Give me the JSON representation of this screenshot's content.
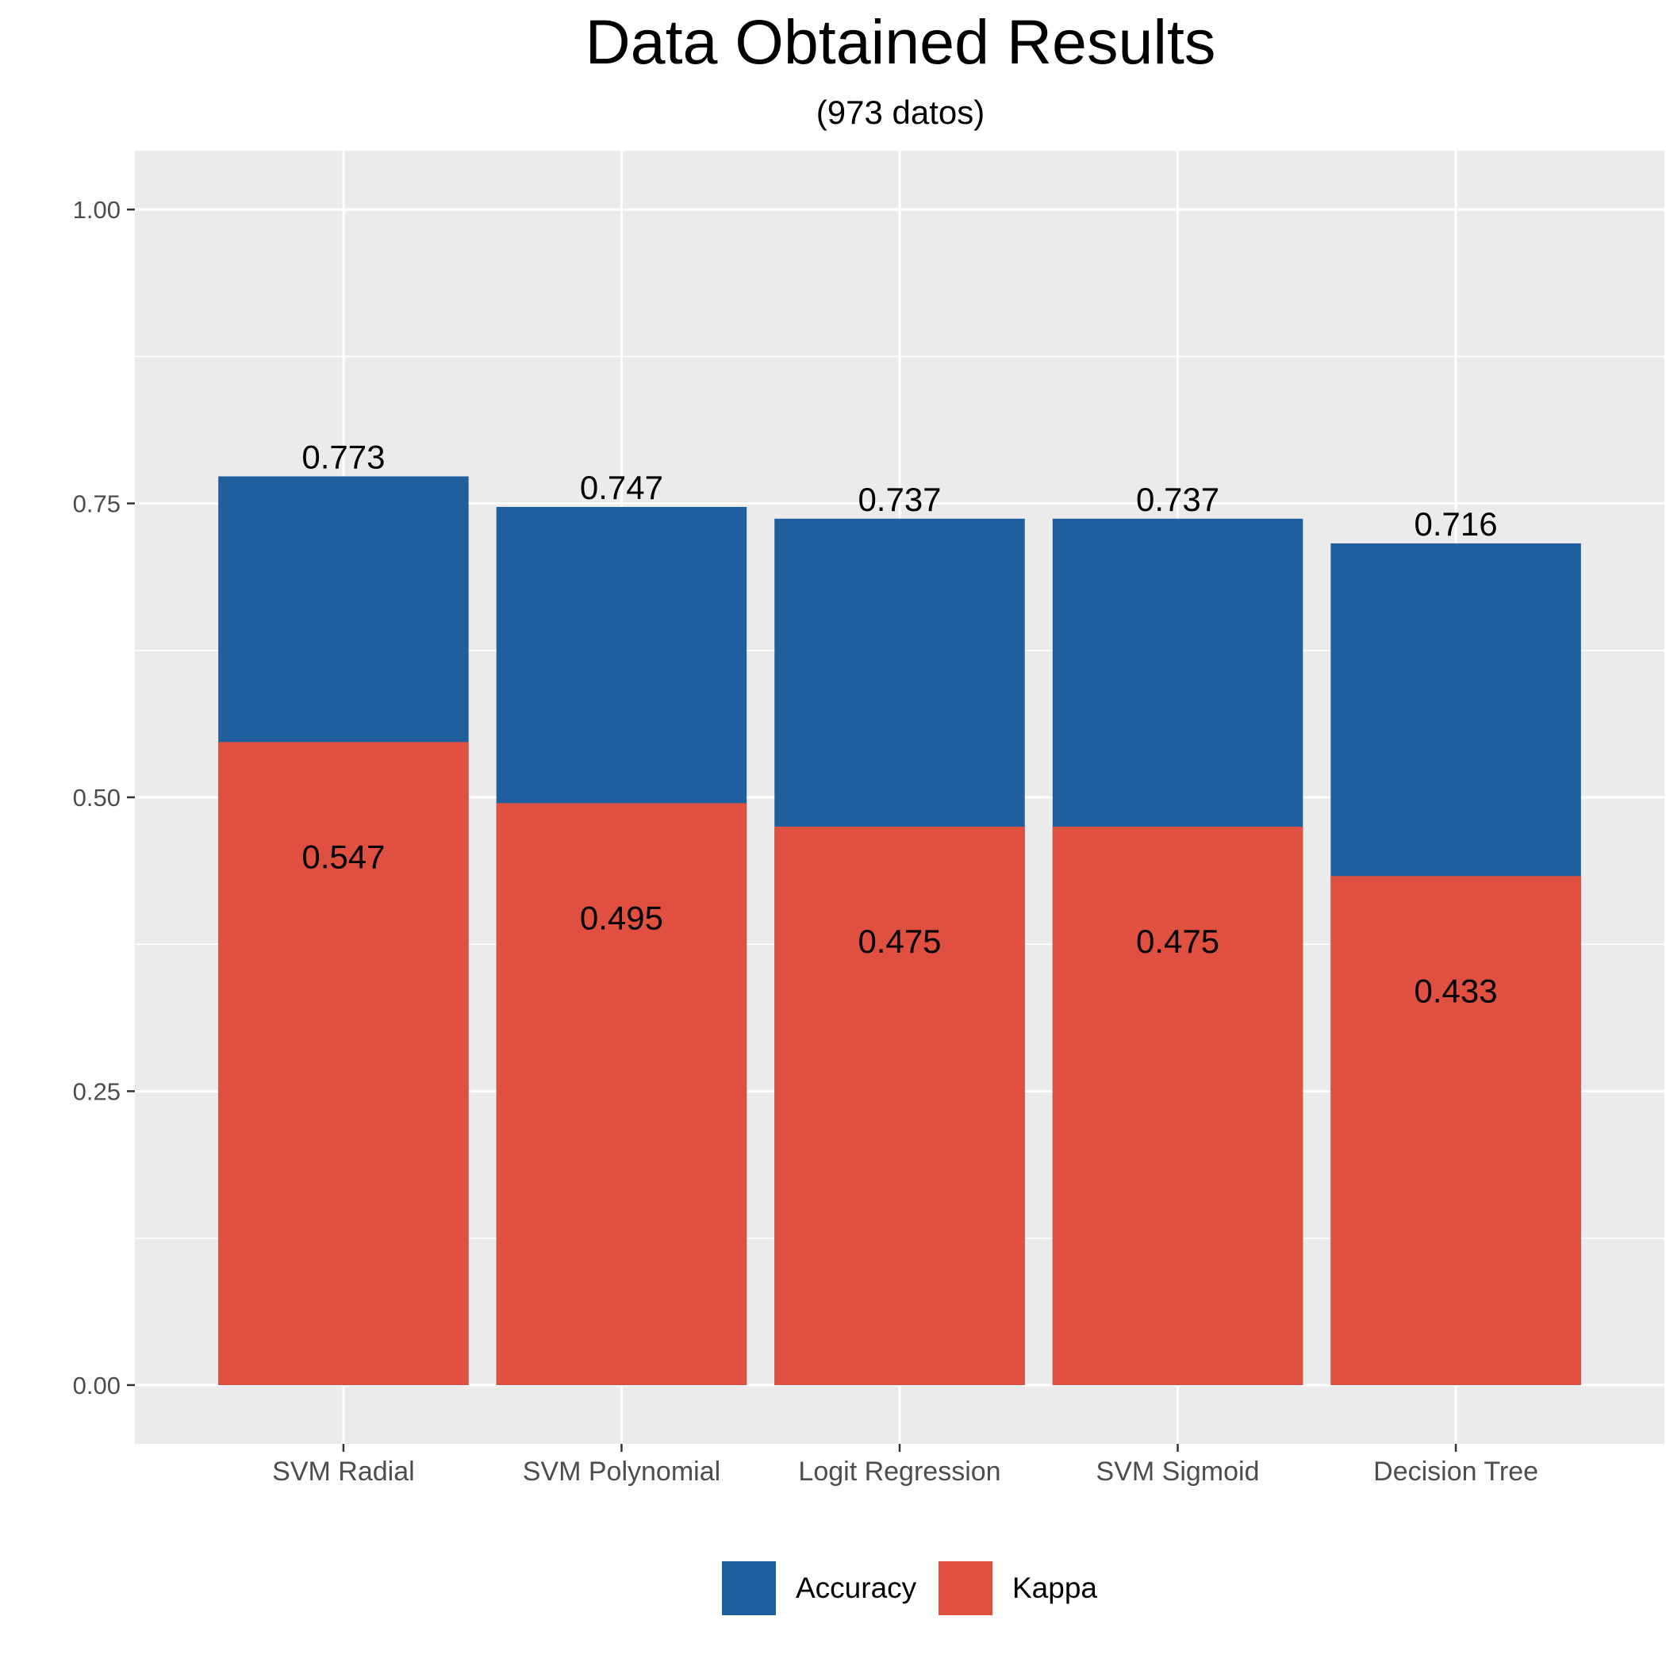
{
  "chart_data": {
    "type": "bar",
    "title": "Data Obtained Results",
    "subtitle": "(973 datos)",
    "xlabel": "",
    "ylabel": "",
    "categories": [
      "SVM Radial",
      "SVM Polynomial",
      "Logit Regression",
      "SVM Sigmoid",
      "Decision Tree"
    ],
    "series": [
      {
        "name": "Accuracy",
        "color": "#1f5f9e",
        "values": [
          0.773,
          0.747,
          0.737,
          0.737,
          0.716
        ],
        "labels": [
          "0.773",
          "0.747",
          "0.737",
          "0.737",
          "0.716"
        ]
      },
      {
        "name": "Kappa",
        "color": "#e05040",
        "values": [
          0.547,
          0.495,
          0.475,
          0.475,
          0.433
        ],
        "labels": [
          "0.547",
          "0.495",
          "0.475",
          "0.475",
          "0.433"
        ]
      }
    ],
    "ylim": [
      -0.05,
      1.05
    ],
    "yticks": [
      0,
      0.25,
      0.5,
      0.75,
      1.0
    ],
    "ytick_labels": [
      "0.00",
      "0.25",
      "0.50",
      "0.75",
      "1.00"
    ],
    "grid": true,
    "panel_background": "#ebebeb",
    "legend_position": "bottom"
  }
}
